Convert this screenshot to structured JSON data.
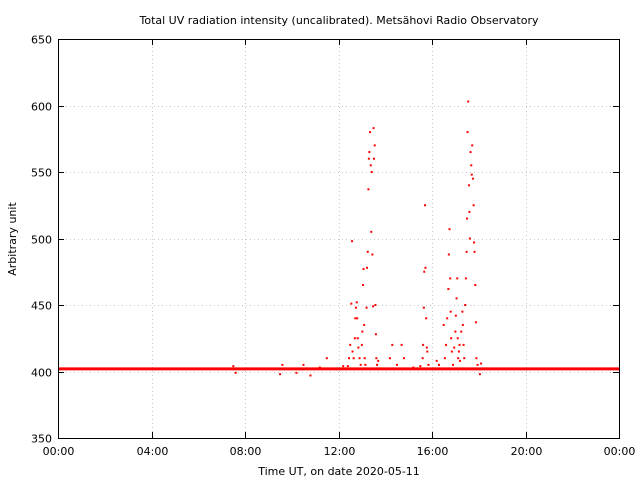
{
  "chart_data": {
    "type": "scatter",
    "title": "Total UV radiation intensity (uncalibrated). Metsähovi Radio Observatory",
    "xlabel": "Time UT, on date 2020-05-11",
    "ylabel": "Arbitrary unit",
    "xlim_hours": [
      0,
      24
    ],
    "ylim": [
      350,
      650
    ],
    "x_tick_labels": [
      "00:00",
      "04:00",
      "08:00",
      "12:00",
      "16:00",
      "20:00",
      "00:00"
    ],
    "y_ticks": [
      350,
      400,
      450,
      500,
      550,
      600,
      650
    ],
    "grid": true,
    "marker_color": "#ff0000",
    "baseline": {
      "x_range_hours": [
        0,
        24
      ],
      "y": 402
    },
    "series": [
      {
        "points": [
          [
            7.5,
            404
          ],
          [
            7.6,
            399
          ],
          [
            9.5,
            398
          ],
          [
            9.6,
            405
          ],
          [
            10.2,
            399
          ],
          [
            10.5,
            405
          ],
          [
            10.8,
            397
          ],
          [
            11.2,
            403
          ],
          [
            11.5,
            410
          ],
          [
            12.2,
            404
          ],
          [
            12.4,
            404
          ],
          [
            12.45,
            410
          ],
          [
            12.5,
            420
          ],
          [
            12.55,
            451
          ],
          [
            12.58,
            498
          ],
          [
            12.6,
            415
          ],
          [
            12.65,
            410
          ],
          [
            12.7,
            425
          ],
          [
            12.72,
            440
          ],
          [
            12.75,
            448
          ],
          [
            12.78,
            452
          ],
          [
            12.8,
            440
          ],
          [
            12.82,
            425
          ],
          [
            12.85,
            418
          ],
          [
            12.9,
            410
          ],
          [
            12.95,
            405
          ],
          [
            13.0,
            420
          ],
          [
            13.02,
            430
          ],
          [
            13.05,
            465
          ],
          [
            13.07,
            477
          ],
          [
            13.1,
            435
          ],
          [
            13.12,
            410
          ],
          [
            13.15,
            405
          ],
          [
            13.2,
            448
          ],
          [
            13.22,
            478
          ],
          [
            13.25,
            490
          ],
          [
            13.28,
            537
          ],
          [
            13.3,
            560
          ],
          [
            13.32,
            565
          ],
          [
            13.35,
            580
          ],
          [
            13.38,
            555
          ],
          [
            13.4,
            505
          ],
          [
            13.42,
            550
          ],
          [
            13.45,
            488
          ],
          [
            13.48,
            449
          ],
          [
            13.5,
            583
          ],
          [
            13.52,
            560
          ],
          [
            13.55,
            570
          ],
          [
            13.58,
            450
          ],
          [
            13.6,
            428
          ],
          [
            13.62,
            410
          ],
          [
            13.65,
            405
          ],
          [
            13.7,
            408
          ],
          [
            13.8,
            402
          ],
          [
            14.2,
            410
          ],
          [
            14.3,
            420
          ],
          [
            14.5,
            405
          ],
          [
            14.7,
            420
          ],
          [
            14.8,
            410
          ],
          [
            15.2,
            403
          ],
          [
            15.5,
            404
          ],
          [
            15.6,
            410
          ],
          [
            15.62,
            420
          ],
          [
            15.65,
            448
          ],
          [
            15.67,
            475
          ],
          [
            15.7,
            525
          ],
          [
            15.72,
            478
          ],
          [
            15.75,
            440
          ],
          [
            15.78,
            418
          ],
          [
            15.8,
            415
          ],
          [
            15.85,
            405
          ],
          [
            16.2,
            408
          ],
          [
            16.3,
            405
          ],
          [
            16.5,
            435
          ],
          [
            16.55,
            410
          ],
          [
            16.6,
            420
          ],
          [
            16.65,
            440
          ],
          [
            16.7,
            462
          ],
          [
            16.72,
            488
          ],
          [
            16.75,
            507
          ],
          [
            16.78,
            470
          ],
          [
            16.8,
            445
          ],
          [
            16.82,
            425
          ],
          [
            16.85,
            415
          ],
          [
            16.9,
            405
          ],
          [
            16.95,
            418
          ],
          [
            17.0,
            430
          ],
          [
            17.02,
            442
          ],
          [
            17.05,
            455
          ],
          [
            17.08,
            470
          ],
          [
            17.1,
            425
          ],
          [
            17.12,
            410
          ],
          [
            17.15,
            415
          ],
          [
            17.18,
            420
          ],
          [
            17.2,
            408
          ],
          [
            17.25,
            430
          ],
          [
            17.3,
            445
          ],
          [
            17.32,
            435
          ],
          [
            17.35,
            420
          ],
          [
            17.38,
            410
          ],
          [
            17.4,
            402
          ],
          [
            17.42,
            450
          ],
          [
            17.45,
            470
          ],
          [
            17.48,
            490
          ],
          [
            17.5,
            515
          ],
          [
            17.52,
            580
          ],
          [
            17.55,
            603
          ],
          [
            17.58,
            540
          ],
          [
            17.6,
            520
          ],
          [
            17.62,
            500
          ],
          [
            17.65,
            565
          ],
          [
            17.68,
            555
          ],
          [
            17.7,
            548
          ],
          [
            17.72,
            570
          ],
          [
            17.75,
            545
          ],
          [
            17.78,
            525
          ],
          [
            17.8,
            497
          ],
          [
            17.82,
            490
          ],
          [
            17.85,
            465
          ],
          [
            17.88,
            437
          ],
          [
            17.9,
            410
          ],
          [
            17.95,
            405
          ],
          [
            18.05,
            398
          ],
          [
            18.1,
            406
          ]
        ]
      }
    ]
  }
}
